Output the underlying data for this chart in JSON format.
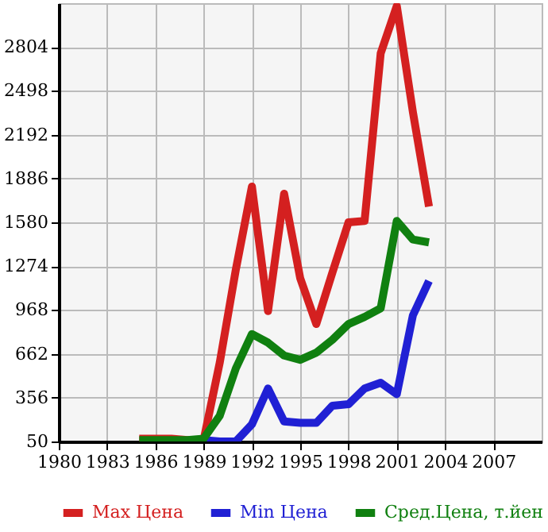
{
  "chart_data": {
    "type": "line",
    "x": [
      1985,
      1986,
      1987,
      1988,
      1989,
      1990,
      1991,
      1992,
      1993,
      1994,
      1995,
      1996,
      1997,
      1998,
      1999,
      2000,
      2001,
      2002,
      2003
    ],
    "series": [
      {
        "name": "Max Цена",
        "color": "#d42020",
        "values": [
          70,
          70,
          70,
          60,
          60,
          600,
          1250,
          1830,
          960,
          1780,
          1190,
          870,
          1230,
          1580,
          1590,
          2760,
          3090,
          2350,
          1690
        ]
      },
      {
        "name": "Min Цена",
        "color": "#2020d4",
        "values": [
          null,
          null,
          null,
          null,
          60,
          50,
          50,
          170,
          420,
          190,
          180,
          180,
          300,
          310,
          420,
          460,
          380,
          930,
          1170
        ]
      },
      {
        "name": "Сред.Цена, т.йен",
        "color": "#108010",
        "values": [
          60,
          60,
          60,
          60,
          70,
          230,
          560,
          800,
          740,
          650,
          620,
          670,
          760,
          870,
          920,
          980,
          1590,
          1460,
          1440
        ]
      }
    ],
    "xlim": [
      1980,
      2010
    ],
    "xticks": [
      1980,
      1983,
      1986,
      1989,
      1992,
      1995,
      1998,
      2001,
      2004,
      2007
    ],
    "ylim": [
      50,
      3110
    ],
    "yticks": [
      50,
      356,
      662,
      968,
      1274,
      1580,
      1886,
      2192,
      2498,
      2804
    ],
    "grid": true,
    "legend": "bottom",
    "line_style": "solid",
    "marker": "none"
  }
}
